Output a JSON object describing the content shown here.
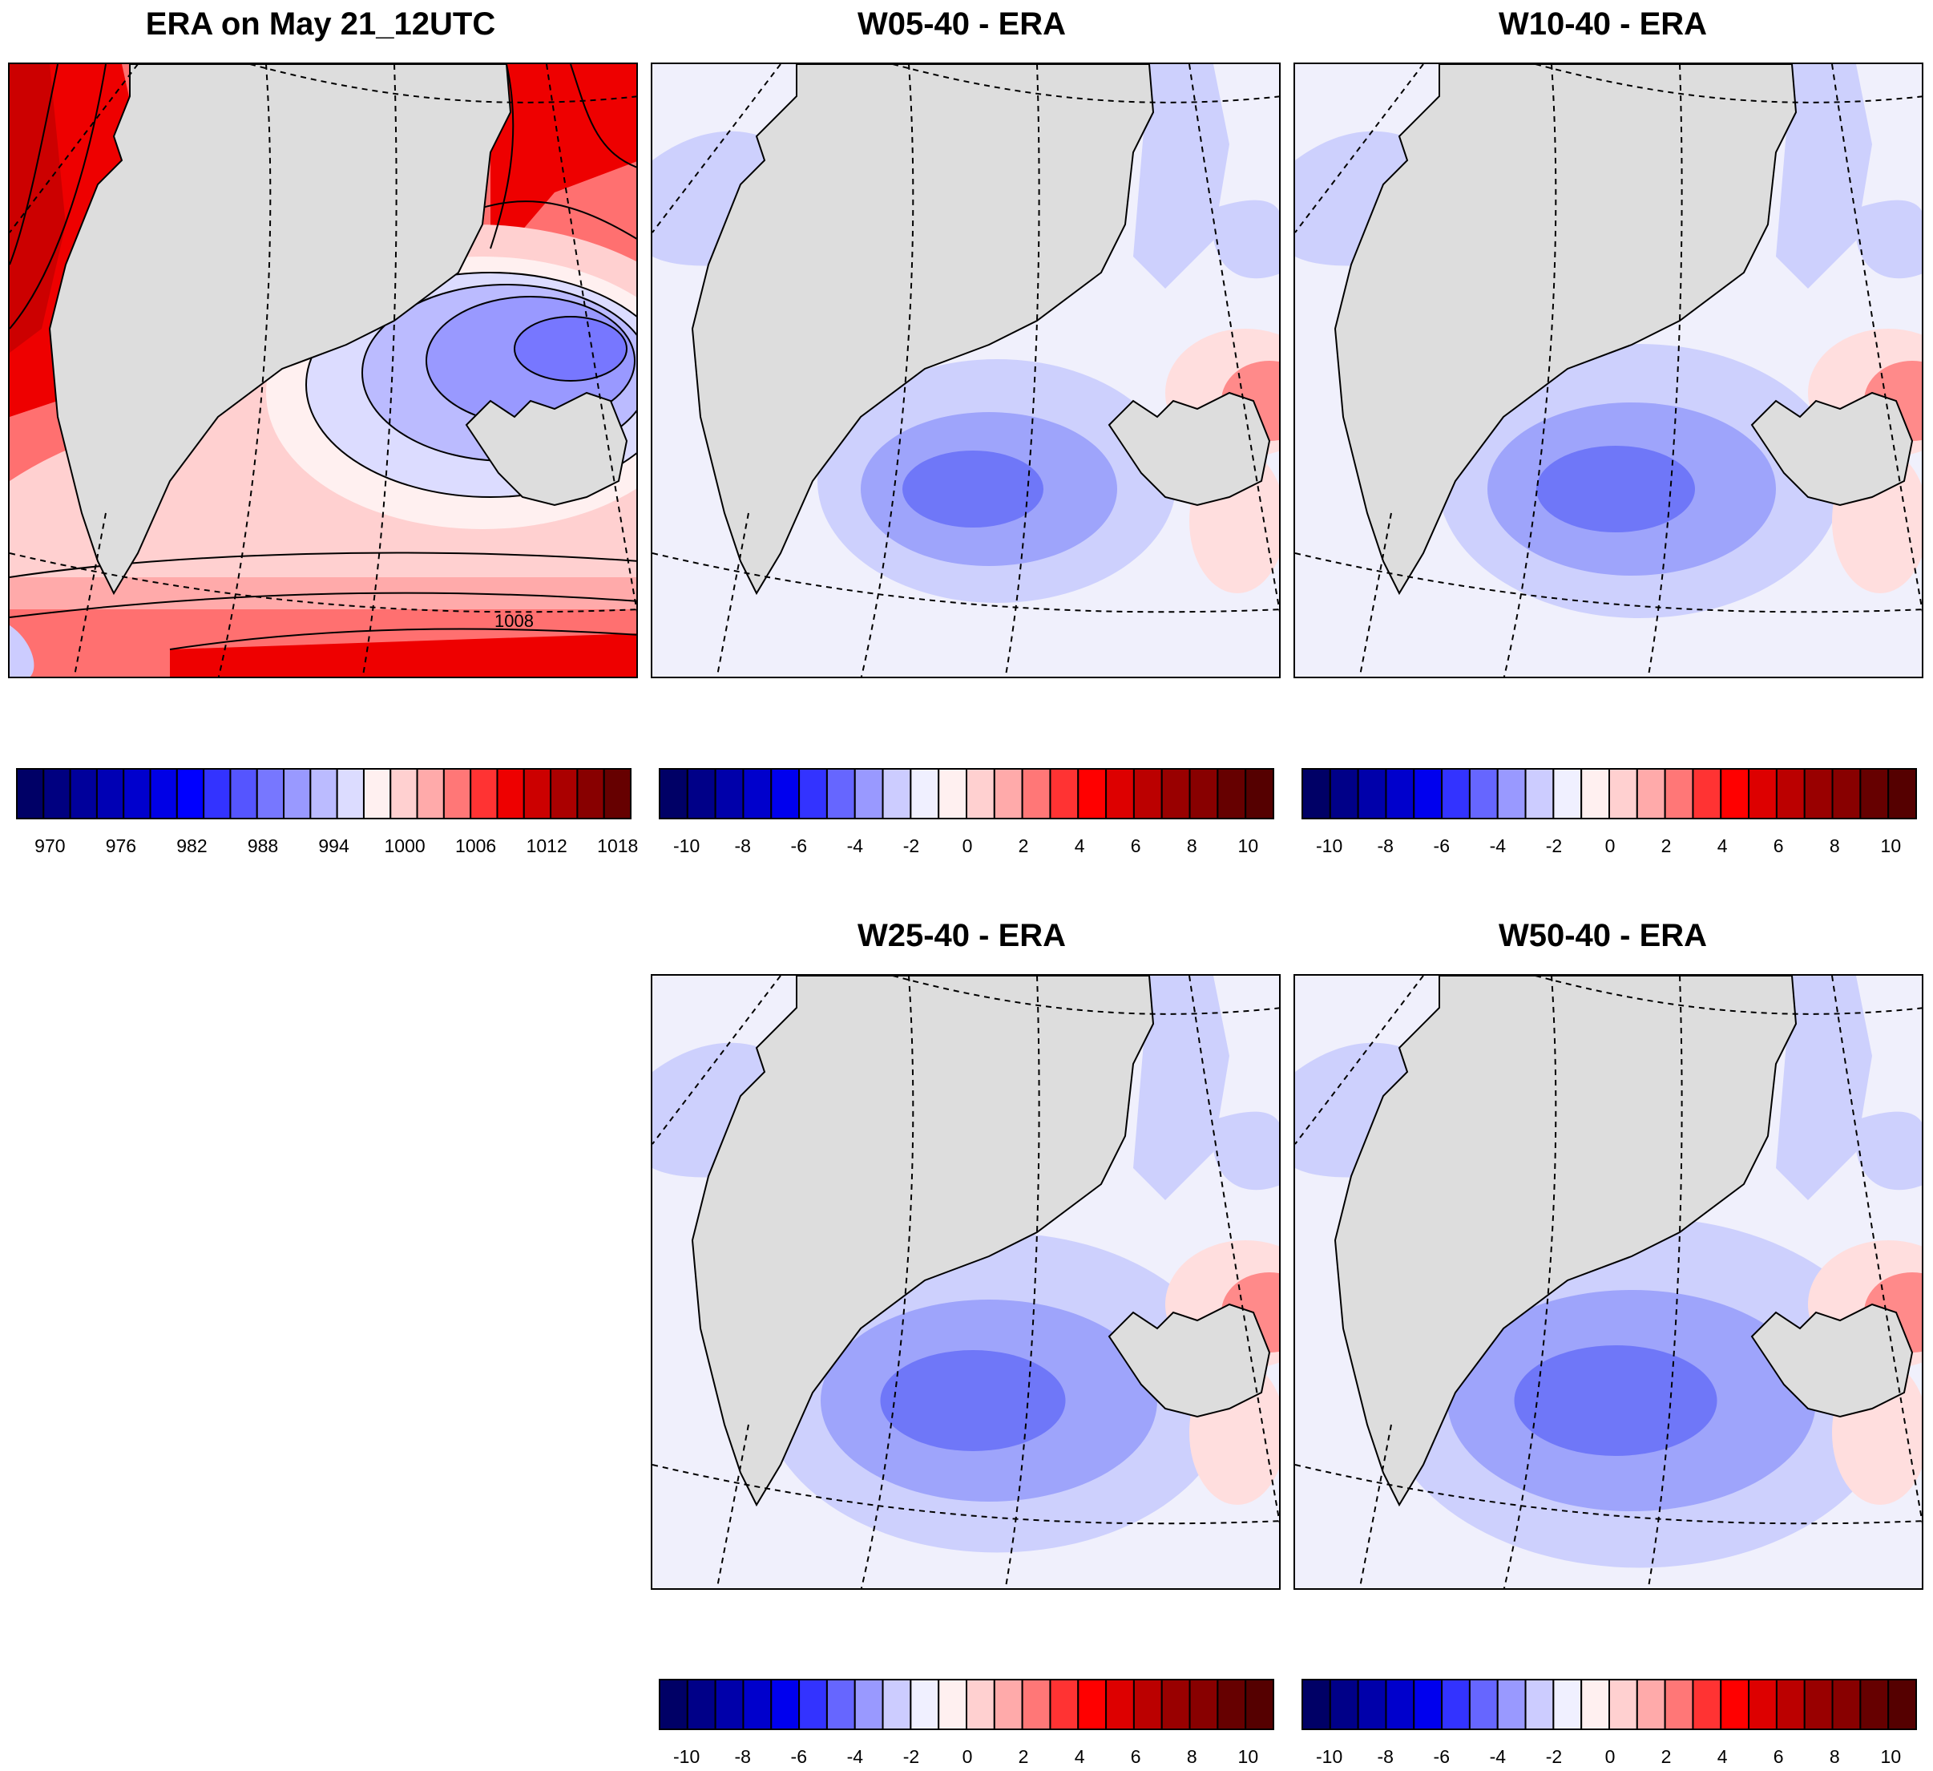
{
  "panels": [
    {
      "title": "ERA on May 21_12UTC",
      "kind": "abs",
      "contour_label": "1008"
    },
    {
      "title": "W05-40 - ERA",
      "kind": "diff"
    },
    {
      "title": "W10-40 - ERA",
      "kind": "diff"
    },
    {
      "title": "W25-40 - ERA",
      "kind": "diff"
    },
    {
      "title": "W50-40 - ERA",
      "kind": "diff"
    }
  ],
  "colorbars": {
    "abs": {
      "colors": [
        "#000066",
        "#000080",
        "#00009b",
        "#0000b4",
        "#0000cd",
        "#0000e6",
        "#0000ff",
        "#3333ff",
        "#5555ff",
        "#7777ff",
        "#9999ff",
        "#bbbbff",
        "#dcdcff",
        "#fff0f0",
        "#ffd0d0",
        "#ffaaaa",
        "#ff7777",
        "#ff3333",
        "#ee0000",
        "#cc0000",
        "#aa0000",
        "#880000",
        "#660000"
      ],
      "labels": [
        "970",
        "976",
        "982",
        "988",
        "994",
        "1000",
        "1006",
        "1012",
        "1018"
      ]
    },
    "diff": {
      "colors": [
        "#000066",
        "#000088",
        "#0000aa",
        "#0000cc",
        "#0000ee",
        "#3333ff",
        "#6666ff",
        "#9999ff",
        "#ccccff",
        "#f0f0ff",
        "#fff0f0",
        "#ffd0d0",
        "#ffaaaa",
        "#ff7777",
        "#ff3333",
        "#ff0000",
        "#dd0000",
        "#bb0000",
        "#990000",
        "#880000",
        "#660000",
        "#550000"
      ],
      "labels": [
        "-10",
        "-8",
        "-6",
        "-4",
        "-2",
        "0",
        "2",
        "4",
        "6",
        "8",
        "10"
      ]
    }
  },
  "colors": {
    "land": "#dddddd",
    "ocean_neutral": "#f0f0fc",
    "blue_light": "#cdd0fd",
    "blue_mid": "#9ea4fb",
    "blue_deep": "#6f77f8",
    "red_light": "#ffdede",
    "red_mid": "#ff8a8a",
    "red_deep": "#ff0000"
  }
}
